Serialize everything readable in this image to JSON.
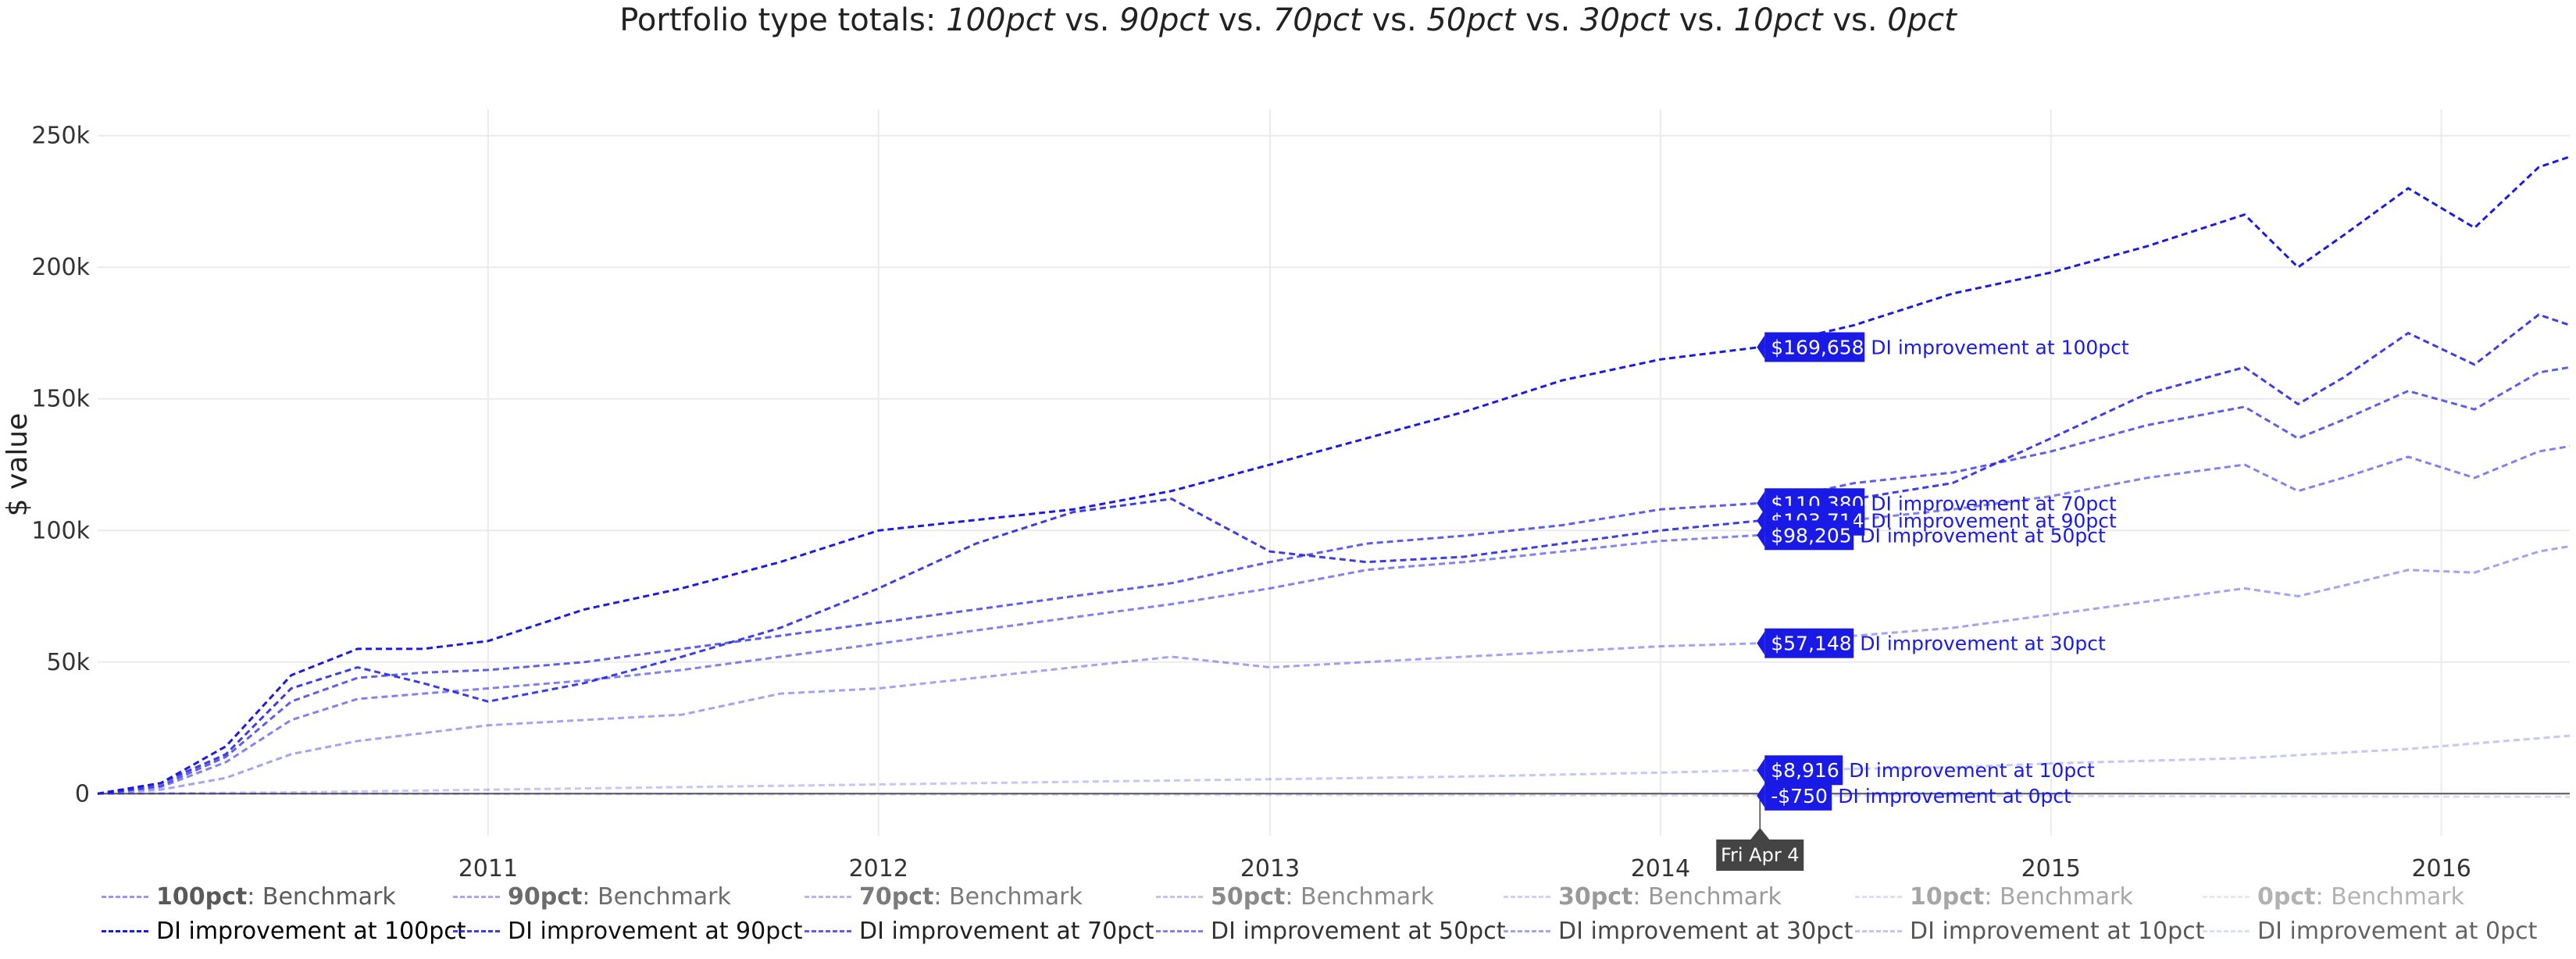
{
  "title": {
    "lead": "Portfolio type totals: ",
    "parts": [
      "100pct",
      "90pct",
      "70pct",
      "50pct",
      "30pct",
      "10pct",
      "0pct"
    ],
    "separator": " vs. "
  },
  "chart_data": {
    "type": "line",
    "title": "Portfolio type totals: 100pct vs. 90pct vs. 70pct vs. 50pct vs. 30pct vs. 10pct vs. 0pct",
    "xlabel": "",
    "ylabel": "$ value",
    "x_ticks": [
      "2011",
      "2012",
      "2013",
      "2014",
      "2015",
      "2016"
    ],
    "y_ticks": [
      "0",
      "50k",
      "100k",
      "150k",
      "200k",
      "250k"
    ],
    "ylim": [
      -10000,
      260000
    ],
    "xlim": [
      "2010-01-01",
      "2016-04-30"
    ],
    "grid": true,
    "legend_position": "bottom",
    "hover": {
      "date_label": "Fri Apr  4",
      "date": "2014-04-04",
      "labels": [
        {
          "value_text": "$169,658",
          "series": "DI improvement at 100pct",
          "value": 169658
        },
        {
          "value_text": "$110,380",
          "series": "DI improvement at 70pct",
          "value": 110380
        },
        {
          "value_text": "$103,714",
          "series": "DI improvement at 90pct",
          "value": 103714
        },
        {
          "value_text": "$98,205",
          "series": "DI improvement at 50pct",
          "value": 98205
        },
        {
          "value_text": "$57,148",
          "series": "DI improvement at 30pct",
          "value": 57148
        },
        {
          "value_text": "$8,916",
          "series": "DI improvement at 10pct",
          "value": 8916
        },
        {
          "value_text": "-$750",
          "series": "DI improvement at 0pct",
          "value": -750
        }
      ]
    },
    "series": [
      {
        "name": "DI improvement at 100pct",
        "color": "#1a1ae6",
        "opacity": 1.0,
        "points": [
          [
            "2010-01-01",
            0
          ],
          [
            "2010-03-01",
            4000
          ],
          [
            "2010-05-01",
            18000
          ],
          [
            "2010-07-01",
            45000
          ],
          [
            "2010-09-01",
            55000
          ],
          [
            "2010-11-01",
            55000
          ],
          [
            "2011-01-01",
            58000
          ],
          [
            "2011-04-01",
            70000
          ],
          [
            "2011-07-01",
            78000
          ],
          [
            "2011-10-01",
            88000
          ],
          [
            "2012-01-01",
            100000
          ],
          [
            "2012-04-01",
            104000
          ],
          [
            "2012-07-01",
            108000
          ],
          [
            "2012-10-01",
            115000
          ],
          [
            "2013-01-01",
            125000
          ],
          [
            "2013-04-01",
            135000
          ],
          [
            "2013-07-01",
            145000
          ],
          [
            "2013-10-01",
            157000
          ],
          [
            "2014-01-01",
            165000
          ],
          [
            "2014-04-04",
            169658
          ],
          [
            "2014-07-01",
            178000
          ],
          [
            "2014-10-01",
            190000
          ],
          [
            "2015-01-01",
            198000
          ],
          [
            "2015-04-01",
            208000
          ],
          [
            "2015-07-01",
            220000
          ],
          [
            "2015-08-20",
            200000
          ],
          [
            "2015-10-01",
            212000
          ],
          [
            "2015-12-01",
            230000
          ],
          [
            "2016-02-01",
            215000
          ],
          [
            "2016-04-01",
            238000
          ],
          [
            "2016-04-30",
            242000
          ]
        ]
      },
      {
        "name": "DI improvement at 90pct",
        "color": "#1a1ae6",
        "opacity": 0.85,
        "points": [
          [
            "2010-01-01",
            0
          ],
          [
            "2010-03-01",
            4000
          ],
          [
            "2010-05-01",
            15000
          ],
          [
            "2010-07-01",
            40000
          ],
          [
            "2010-09-01",
            48000
          ],
          [
            "2010-11-01",
            42000
          ],
          [
            "2011-01-01",
            35000
          ],
          [
            "2011-04-01",
            42000
          ],
          [
            "2011-07-01",
            52000
          ],
          [
            "2011-10-01",
            63000
          ],
          [
            "2012-01-01",
            78000
          ],
          [
            "2012-04-01",
            95000
          ],
          [
            "2012-07-01",
            107000
          ],
          [
            "2012-10-01",
            112000
          ],
          [
            "2013-01-01",
            92000
          ],
          [
            "2013-04-01",
            88000
          ],
          [
            "2013-07-01",
            90000
          ],
          [
            "2013-10-01",
            95000
          ],
          [
            "2014-01-01",
            100000
          ],
          [
            "2014-04-04",
            103714
          ],
          [
            "2014-07-01",
            112000
          ],
          [
            "2014-10-01",
            118000
          ],
          [
            "2015-01-01",
            135000
          ],
          [
            "2015-04-01",
            152000
          ],
          [
            "2015-07-01",
            162000
          ],
          [
            "2015-08-20",
            148000
          ],
          [
            "2015-10-01",
            158000
          ],
          [
            "2015-12-01",
            175000
          ],
          [
            "2016-02-01",
            163000
          ],
          [
            "2016-04-01",
            182000
          ],
          [
            "2016-04-30",
            178000
          ]
        ]
      },
      {
        "name": "DI improvement at 70pct",
        "color": "#1a1ae6",
        "opacity": 0.7,
        "points": [
          [
            "2010-01-01",
            0
          ],
          [
            "2010-03-01",
            3000
          ],
          [
            "2010-05-01",
            14000
          ],
          [
            "2010-07-01",
            35000
          ],
          [
            "2010-09-01",
            44000
          ],
          [
            "2010-11-01",
            46000
          ],
          [
            "2011-01-01",
            47000
          ],
          [
            "2011-04-01",
            50000
          ],
          [
            "2011-07-01",
            55000
          ],
          [
            "2011-10-01",
            60000
          ],
          [
            "2012-01-01",
            65000
          ],
          [
            "2012-04-01",
            70000
          ],
          [
            "2012-07-01",
            75000
          ],
          [
            "2012-10-01",
            80000
          ],
          [
            "2013-01-01",
            88000
          ],
          [
            "2013-04-01",
            95000
          ],
          [
            "2013-07-01",
            98000
          ],
          [
            "2013-10-01",
            102000
          ],
          [
            "2014-01-01",
            108000
          ],
          [
            "2014-04-04",
            110380
          ],
          [
            "2014-07-01",
            118000
          ],
          [
            "2014-10-01",
            122000
          ],
          [
            "2015-01-01",
            130000
          ],
          [
            "2015-04-01",
            140000
          ],
          [
            "2015-07-01",
            147000
          ],
          [
            "2015-08-20",
            135000
          ],
          [
            "2015-10-01",
            142000
          ],
          [
            "2015-12-01",
            153000
          ],
          [
            "2016-02-01",
            146000
          ],
          [
            "2016-04-01",
            160000
          ],
          [
            "2016-04-30",
            162000
          ]
        ]
      },
      {
        "name": "DI improvement at 50pct",
        "color": "#1a1ae6",
        "opacity": 0.55,
        "points": [
          [
            "2010-01-01",
            0
          ],
          [
            "2010-03-01",
            2500
          ],
          [
            "2010-05-01",
            12000
          ],
          [
            "2010-07-01",
            28000
          ],
          [
            "2010-09-01",
            36000
          ],
          [
            "2010-11-01",
            38000
          ],
          [
            "2011-01-01",
            40000
          ],
          [
            "2011-04-01",
            43000
          ],
          [
            "2011-07-01",
            47000
          ],
          [
            "2011-10-01",
            52000
          ],
          [
            "2012-01-01",
            57000
          ],
          [
            "2012-04-01",
            62000
          ],
          [
            "2012-07-01",
            67000
          ],
          [
            "2012-10-01",
            72000
          ],
          [
            "2013-01-01",
            78000
          ],
          [
            "2013-04-01",
            85000
          ],
          [
            "2013-07-01",
            88000
          ],
          [
            "2013-10-01",
            92000
          ],
          [
            "2014-01-01",
            96000
          ],
          [
            "2014-04-04",
            98205
          ],
          [
            "2014-07-01",
            104000
          ],
          [
            "2014-10-01",
            108000
          ],
          [
            "2015-01-01",
            113000
          ],
          [
            "2015-04-01",
            120000
          ],
          [
            "2015-07-01",
            125000
          ],
          [
            "2015-08-20",
            115000
          ],
          [
            "2015-10-01",
            120000
          ],
          [
            "2015-12-01",
            128000
          ],
          [
            "2016-02-01",
            120000
          ],
          [
            "2016-04-01",
            130000
          ],
          [
            "2016-04-30",
            132000
          ]
        ]
      },
      {
        "name": "DI improvement at 30pct",
        "color": "#1a1ae6",
        "opacity": 0.4,
        "points": [
          [
            "2010-01-01",
            0
          ],
          [
            "2010-03-01",
            1500
          ],
          [
            "2010-05-01",
            6000
          ],
          [
            "2010-07-01",
            15000
          ],
          [
            "2010-09-01",
            20000
          ],
          [
            "2010-11-01",
            23000
          ],
          [
            "2011-01-01",
            26000
          ],
          [
            "2011-04-01",
            28000
          ],
          [
            "2011-07-01",
            30000
          ],
          [
            "2011-10-01",
            38000
          ],
          [
            "2012-01-01",
            40000
          ],
          [
            "2012-04-01",
            44000
          ],
          [
            "2012-07-01",
            48000
          ],
          [
            "2012-10-01",
            52000
          ],
          [
            "2013-01-01",
            48000
          ],
          [
            "2013-04-01",
            50000
          ],
          [
            "2013-07-01",
            52000
          ],
          [
            "2013-10-01",
            54000
          ],
          [
            "2014-01-01",
            56000
          ],
          [
            "2014-04-04",
            57148
          ],
          [
            "2014-07-01",
            60000
          ],
          [
            "2014-10-01",
            63000
          ],
          [
            "2015-01-01",
            68000
          ],
          [
            "2015-04-01",
            73000
          ],
          [
            "2015-07-01",
            78000
          ],
          [
            "2015-08-20",
            75000
          ],
          [
            "2015-10-01",
            79000
          ],
          [
            "2015-12-01",
            85000
          ],
          [
            "2016-02-01",
            84000
          ],
          [
            "2016-04-01",
            92000
          ],
          [
            "2016-04-30",
            94000
          ]
        ]
      },
      {
        "name": "DI improvement at 10pct",
        "color": "#1a1ae6",
        "opacity": 0.25,
        "points": [
          [
            "2010-01-01",
            0
          ],
          [
            "2010-07-01",
            500
          ],
          [
            "2011-01-01",
            1500
          ],
          [
            "2011-07-01",
            2500
          ],
          [
            "2012-01-01",
            3500
          ],
          [
            "2012-07-01",
            4500
          ],
          [
            "2013-01-01",
            5500
          ],
          [
            "2013-07-01",
            6500
          ],
          [
            "2014-01-01",
            8000
          ],
          [
            "2014-04-04",
            8916
          ],
          [
            "2014-10-01",
            10000
          ],
          [
            "2015-01-01",
            11500
          ],
          [
            "2015-07-01",
            13500
          ],
          [
            "2015-12-01",
            17000
          ],
          [
            "2016-04-30",
            22000
          ]
        ]
      },
      {
        "name": "DI improvement at 0pct",
        "color": "#1a1ae6",
        "opacity": 0.15,
        "points": [
          [
            "2010-01-01",
            0
          ],
          [
            "2012-01-01",
            -300
          ],
          [
            "2014-04-04",
            -750
          ],
          [
            "2016-04-30",
            -1200
          ]
        ]
      }
    ],
    "legend": [
      {
        "prefix": "100pct",
        "suffix": ": Benchmark",
        "color": "#1a1ae6",
        "opacity": 0.45
      },
      {
        "prefix": "90pct",
        "suffix": ": Benchmark",
        "color": "#1a1ae6",
        "opacity": 0.38
      },
      {
        "prefix": "70pct",
        "suffix": ": Benchmark",
        "color": "#1a1ae6",
        "opacity": 0.32
      },
      {
        "prefix": "50pct",
        "suffix": ": Benchmark",
        "color": "#1a1ae6",
        "opacity": 0.26
      },
      {
        "prefix": "30pct",
        "suffix": ": Benchmark",
        "color": "#1a1ae6",
        "opacity": 0.2
      },
      {
        "prefix": "10pct",
        "suffix": ": Benchmark",
        "color": "#1a1ae6",
        "opacity": 0.15
      },
      {
        "prefix": "0pct",
        "suffix": ": Benchmark",
        "color": "#1a1ae6",
        "opacity": 0.1
      },
      {
        "prefix": "",
        "suffix": "DI improvement at 100pct",
        "color": "#1a1ae6",
        "opacity": 1.0
      },
      {
        "prefix": "",
        "suffix": "DI improvement at 90pct",
        "color": "#1a1ae6",
        "opacity": 0.85
      },
      {
        "prefix": "",
        "suffix": "DI improvement at 70pct",
        "color": "#1a1ae6",
        "opacity": 0.7
      },
      {
        "prefix": "",
        "suffix": "DI improvement at 50pct",
        "color": "#1a1ae6",
        "opacity": 0.55
      },
      {
        "prefix": "",
        "suffix": "DI improvement at 30pct",
        "color": "#1a1ae6",
        "opacity": 0.4
      },
      {
        "prefix": "",
        "suffix": "DI improvement at 10pct",
        "color": "#1a1ae6",
        "opacity": 0.25
      },
      {
        "prefix": "",
        "suffix": "DI improvement at 0pct",
        "color": "#1a1ae6",
        "opacity": 0.15
      }
    ]
  },
  "colors": {
    "accent": "#1a1ae6",
    "tooltip_bg": "#444444",
    "grid": "#ebebeb",
    "zero_line": "#555555"
  }
}
